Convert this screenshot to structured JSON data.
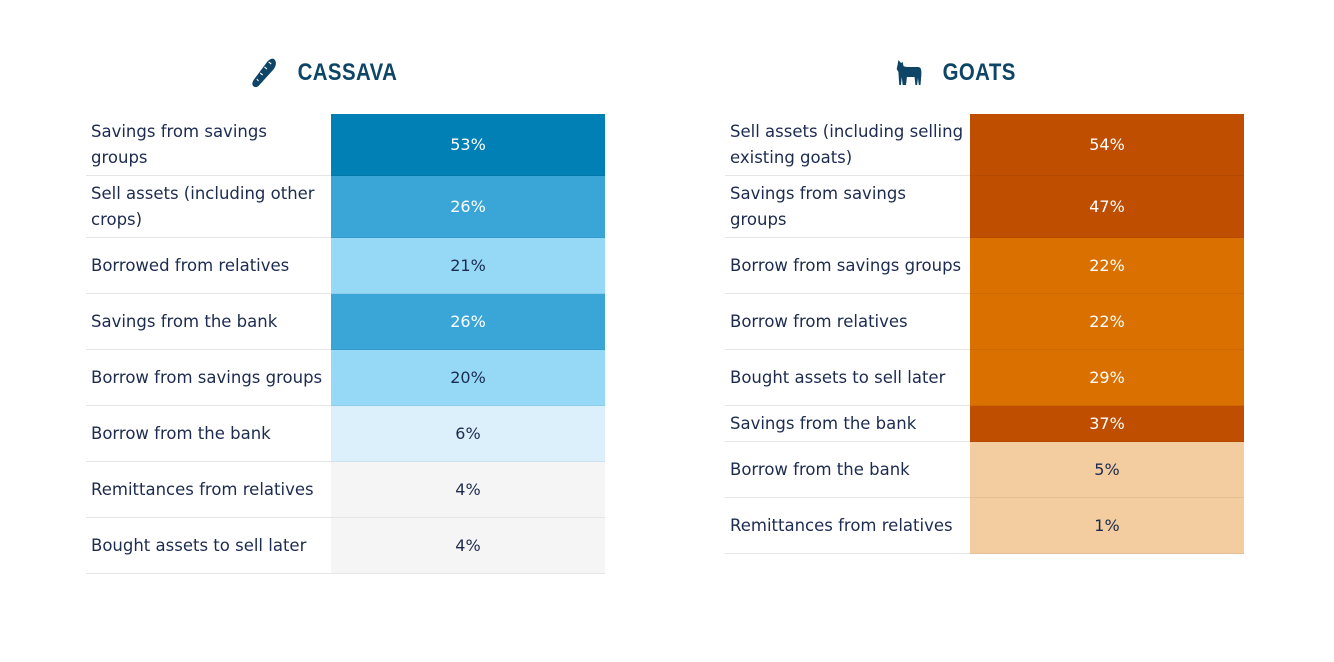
{
  "chart_data": [
    {
      "type": "table",
      "title": "CASSAVA",
      "icon": "cassava-icon",
      "rows": [
        {
          "label": "Savings from savings groups",
          "value": "53%",
          "color": "#0080b4"
        },
        {
          "label": "Sell assets (including other crops)",
          "value": "26%",
          "color": "#3aa6d8"
        },
        {
          "label": "Borrowed from relatives",
          "value": "21%",
          "color": "#96d9f7"
        },
        {
          "label": "Savings from the bank",
          "value": "26%",
          "color": "#3aa6d8"
        },
        {
          "label": "Borrow from savings groups",
          "value": "20%",
          "color": "#96d9f7"
        },
        {
          "label": "Borrow from the bank",
          "value": "6%",
          "color": "#dcf0fb"
        },
        {
          "label": "Remittances from relatives",
          "value": "4%",
          "color": "#f5f5f5"
        },
        {
          "label": "Bought assets to sell later",
          "value": "4%",
          "color": "#f5f5f5"
        }
      ]
    },
    {
      "type": "table",
      "title": "GOATS",
      "icon": "goat-icon",
      "rows": [
        {
          "label": "Sell assets (including selling existing goats)",
          "value": "54%",
          "color": "#c04e00"
        },
        {
          "label": "Savings from savings groups",
          "value": "47%",
          "color": "#c04e00"
        },
        {
          "label": "Borrow from savings groups",
          "value": "22%",
          "color": "#d97000"
        },
        {
          "label": "Borrow from relatives",
          "value": "22%",
          "color": "#d97000"
        },
        {
          "label": "Bought assets to sell later",
          "value": "29%",
          "color": "#d97000"
        },
        {
          "label": "Savings from the bank",
          "value": "37%",
          "color": "#c04e00"
        },
        {
          "label": "Borrow from the bank",
          "value": "5%",
          "color": "#f3cca0"
        },
        {
          "label": "Remittances from relatives",
          "value": "1%",
          "color": "#f3cca0"
        }
      ]
    }
  ]
}
